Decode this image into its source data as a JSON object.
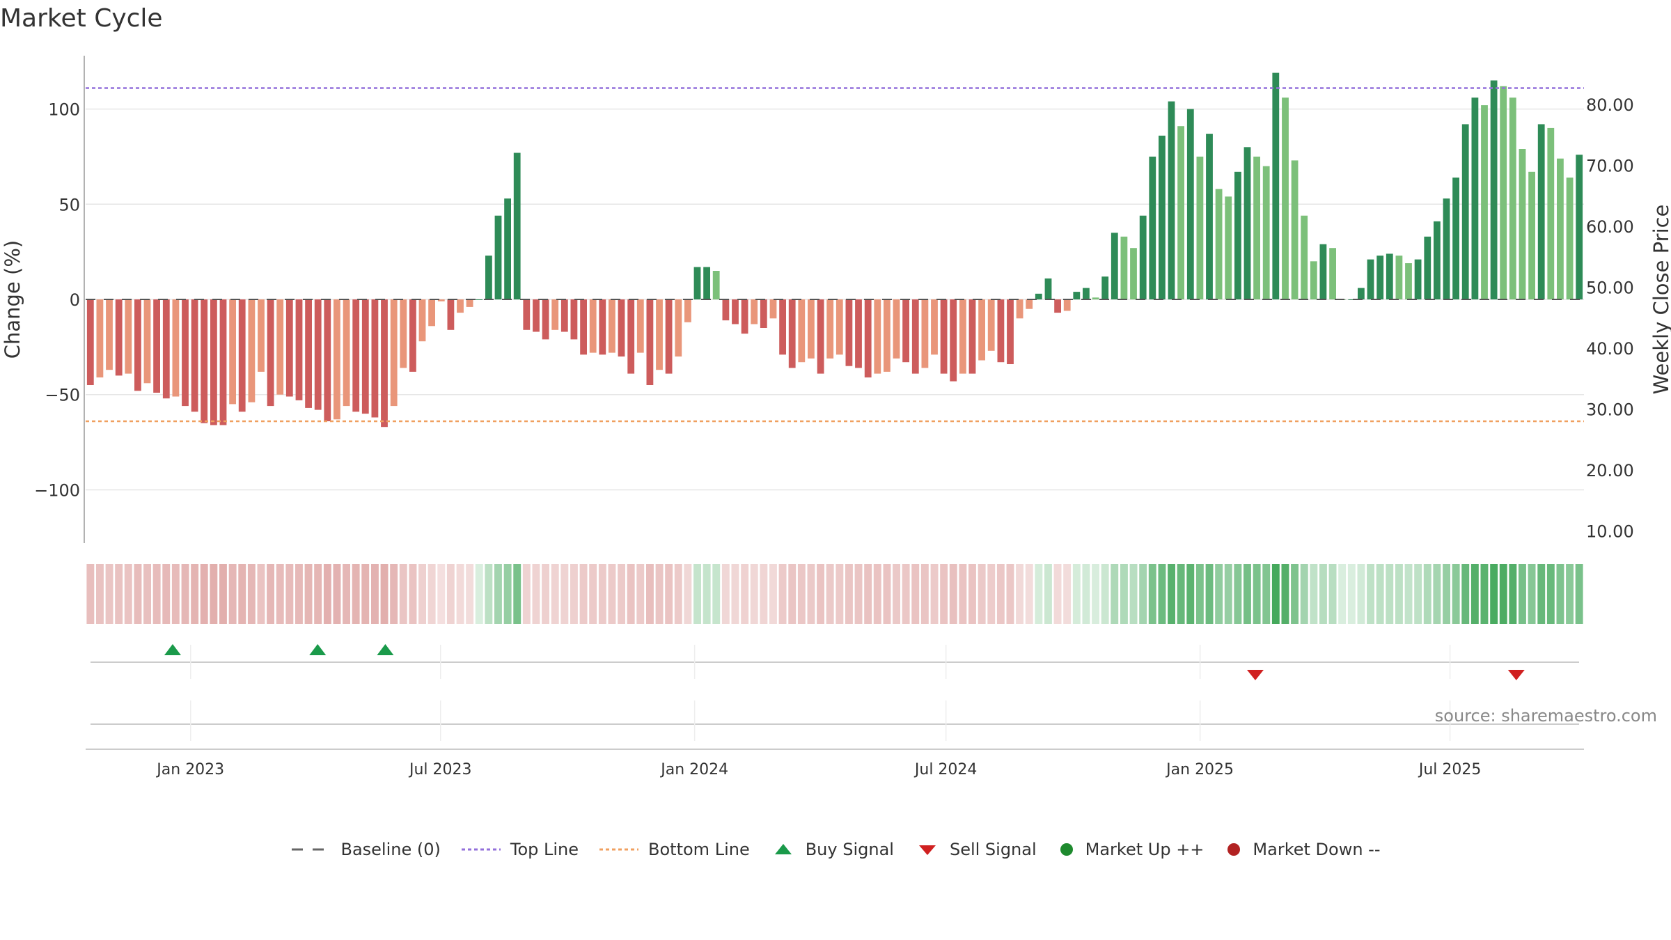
{
  "title": "Market Cycle",
  "source": "source: sharemaestro.com",
  "legend": {
    "baseline": "Baseline (0)",
    "top_line": "Top Line",
    "bottom_line": "Bottom Line",
    "buy_signal": "Buy Signal",
    "sell_signal": "Sell Signal",
    "market_up": "Market Up ++",
    "market_down": "Market Down --"
  },
  "colors": {
    "strong_up": "#2e8b57",
    "weak_up": "#7cc07a",
    "strong_down": "#cd5c5c",
    "weak_down": "#e9967a",
    "top_line": "#9370db",
    "bottom_line": "#f0a060",
    "buy": "#1a9a4a",
    "sell": "#d02020",
    "market_up": "#1e8a2e",
    "market_down": "#b22222"
  },
  "chart_data": {
    "type": "bar",
    "ylabel": "Change (%)",
    "y2label": "Weekly Close Price",
    "ylim": [
      -128,
      128
    ],
    "y2lim": [
      8,
      88
    ],
    "yticks": [
      100,
      50,
      0,
      -50,
      -100
    ],
    "ytick_labels": [
      "100",
      "50",
      "0",
      "−50",
      "−100"
    ],
    "y2ticks": [
      80,
      70,
      60,
      50,
      40,
      30,
      20,
      10
    ],
    "y2tick_labels": [
      "80.00",
      "70.00",
      "60.00",
      "50.00",
      "40.00",
      "30.00",
      "20.00",
      "10.00"
    ],
    "top_line": 111,
    "bottom_line": -64,
    "baseline": 0,
    "x_start": "2022-10-17",
    "x_end": "2025-10-06",
    "xticks": [
      "2023-01-01",
      "2023-07-01",
      "2024-01-01",
      "2024-07-01",
      "2025-01-01",
      "2025-07-01"
    ],
    "xtick_labels": [
      "Jan 2023",
      "Jul 2023",
      "Jan 2024",
      "Jul 2024",
      "Jan 2025",
      "Jul 2025"
    ],
    "values": [
      -45,
      -41,
      -37,
      -40,
      -39,
      -48,
      -44,
      -49,
      -52,
      -51,
      -56,
      -59,
      -65,
      -66,
      -66,
      -55,
      -59,
      -54,
      -38,
      -56,
      -50,
      -51,
      -53,
      -57,
      -58,
      -64,
      -63,
      -56,
      -59,
      -60,
      -62,
      -67,
      -56,
      -36,
      -38,
      -22,
      -14,
      -1,
      -16,
      -7,
      -4,
      0,
      23,
      44,
      53,
      77,
      -16,
      -17,
      -21,
      -16,
      -17,
      -21,
      -29,
      -28,
      -29,
      -28,
      -30,
      -39,
      -28,
      -45,
      -37,
      -39,
      -30,
      -12,
      17,
      17,
      15,
      -11,
      -13,
      -18,
      -13,
      -15,
      -10,
      -29,
      -36,
      -33,
      -31,
      -39,
      -31,
      -29,
      -35,
      -36,
      -41,
      -39,
      -38,
      -31,
      -33,
      -39,
      -36,
      -29,
      -39,
      -43,
      -39,
      -39,
      -32,
      -27,
      -33,
      -34,
      -10,
      -5,
      3,
      11,
      -7,
      -6,
      4,
      6,
      1,
      12,
      35,
      33,
      27,
      44,
      75,
      86,
      104,
      91,
      100,
      75,
      87,
      58,
      54,
      67,
      80,
      75,
      70,
      119,
      106,
      73,
      44,
      20,
      29,
      27,
      0,
      0,
      6,
      21,
      23,
      24,
      23,
      19,
      21,
      33,
      41,
      53,
      64,
      92,
      106,
      102,
      115,
      112,
      106,
      79,
      67,
      92,
      90,
      74,
      64,
      76
    ],
    "signals": [
      {
        "type": "buy",
        "date": "2022-12-19"
      },
      {
        "type": "buy",
        "date": "2023-04-03"
      },
      {
        "type": "buy",
        "date": "2023-05-22"
      },
      {
        "type": "sell",
        "date": "2025-02-10"
      },
      {
        "type": "sell",
        "date": "2025-08-18"
      }
    ]
  }
}
